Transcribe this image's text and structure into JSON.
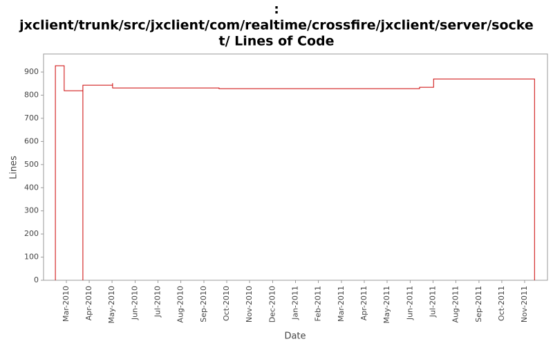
{
  "chart_data": {
    "type": "line",
    "title": [
      ":",
      "jxclient/trunk/src/jxclient/com/realtime/crossfire/jxclient/server/socke",
      "t/ Lines of Code"
    ],
    "x_label": "Date",
    "y_label": "Lines",
    "series": [
      {
        "name": "Lines",
        "color": "#cc0000",
        "x": [
          2010.127,
          2010.127,
          2010.159,
          2010.159,
          2010.227,
          2010.227,
          2010.227,
          2010.335,
          2010.335,
          2010.335,
          2010.722,
          2010.722,
          2011.451,
          2011.451,
          2011.502,
          2011.502,
          2011.869,
          2011.869
        ],
        "values": [
          0,
          927,
          927,
          819,
          819,
          0,
          843,
          843,
          852,
          831,
          831,
          828,
          828,
          834,
          834,
          870,
          870,
          0
        ]
      }
    ],
    "xlim": [
      2010.084,
      2011.916
    ],
    "ylim": [
      0,
      978
    ],
    "xticks": [
      {
        "value": 2010.167,
        "label": "Mar-2010"
      },
      {
        "value": 2010.25,
        "label": "Apr-2010"
      },
      {
        "value": 2010.333,
        "label": "May-2010"
      },
      {
        "value": 2010.417,
        "label": "Jun-2010"
      },
      {
        "value": 2010.5,
        "label": "Jul-2010"
      },
      {
        "value": 2010.583,
        "label": "Aug-2010"
      },
      {
        "value": 2010.667,
        "label": "Sep-2010"
      },
      {
        "value": 2010.75,
        "label": "Oct-2010"
      },
      {
        "value": 2010.833,
        "label": "Nov-2010"
      },
      {
        "value": 2010.917,
        "label": "Dec-2010"
      },
      {
        "value": 2011.0,
        "label": "Jan-2011"
      },
      {
        "value": 2011.083,
        "label": "Feb-2011"
      },
      {
        "value": 2011.167,
        "label": "Mar-2011"
      },
      {
        "value": 2011.25,
        "label": "Apr-2011"
      },
      {
        "value": 2011.333,
        "label": "May-2011"
      },
      {
        "value": 2011.417,
        "label": "Jun-2011"
      },
      {
        "value": 2011.5,
        "label": "Jul-2011"
      },
      {
        "value": 2011.583,
        "label": "Aug-2011"
      },
      {
        "value": 2011.667,
        "label": "Sep-2011"
      },
      {
        "value": 2011.75,
        "label": "Oct-2011"
      },
      {
        "value": 2011.833,
        "label": "Nov-2011"
      }
    ],
    "yticks": [
      0,
      100,
      200,
      300,
      400,
      500,
      600,
      700,
      800,
      900
    ],
    "grid": false
  }
}
